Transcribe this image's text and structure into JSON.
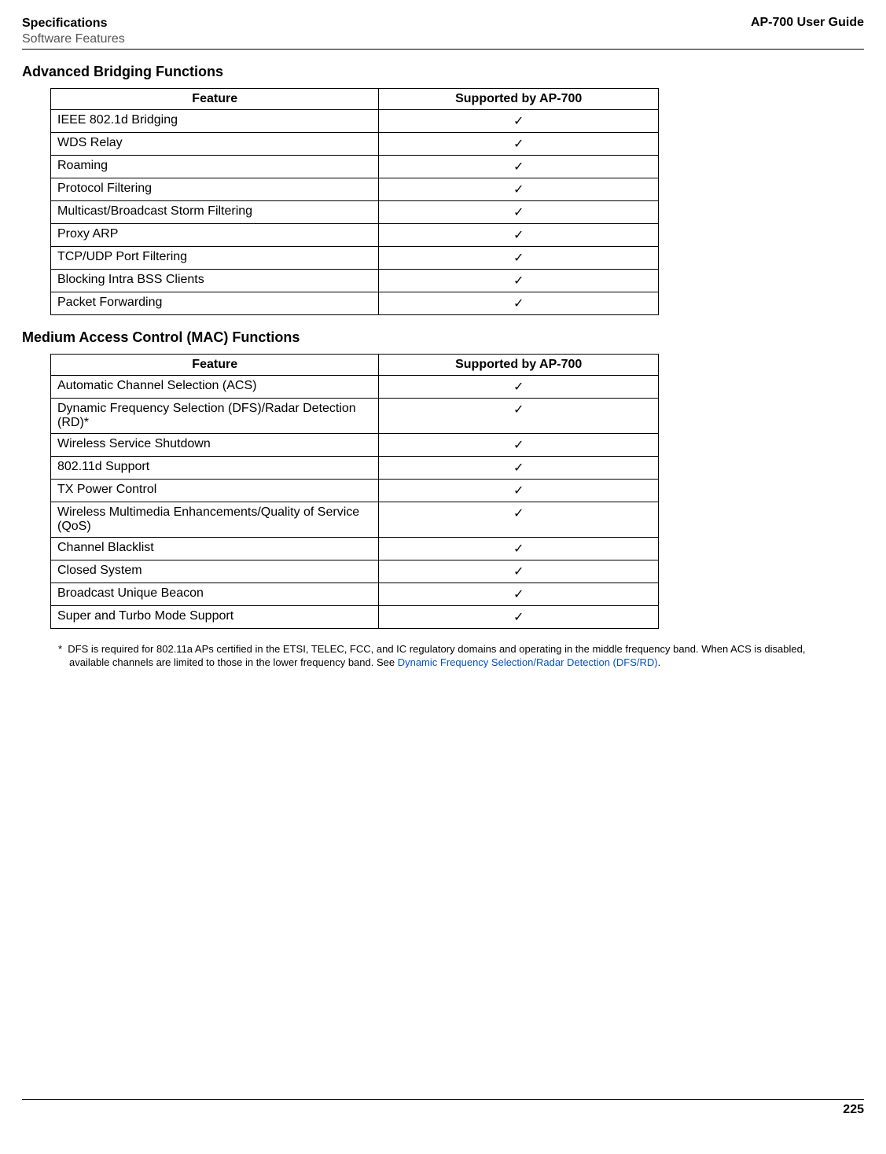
{
  "header": {
    "line1": "Specifications",
    "line2": "Software Features",
    "right": "AP-700 User Guide"
  },
  "sections": [
    {
      "title": "Advanced Bridging Functions",
      "columns": [
        "Feature",
        "Supported by AP-700"
      ],
      "rows": [
        [
          "IEEE 802.1d Bridging",
          "✓"
        ],
        [
          "WDS Relay",
          "✓"
        ],
        [
          "Roaming",
          "✓"
        ],
        [
          "Protocol Filtering",
          "✓"
        ],
        [
          "Multicast/Broadcast Storm Filtering",
          "✓"
        ],
        [
          "Proxy ARP",
          "✓"
        ],
        [
          "TCP/UDP Port Filtering",
          "✓"
        ],
        [
          "Blocking Intra BSS Clients",
          "✓"
        ],
        [
          "Packet Forwarding",
          "✓"
        ]
      ]
    },
    {
      "title": "Medium Access Control (MAC) Functions",
      "columns": [
        "Feature",
        "Supported by AP-700"
      ],
      "rows": [
        [
          "Automatic Channel Selection (ACS)",
          "✓"
        ],
        [
          "Dynamic Frequency Selection (DFS)/Radar Detection (RD)*",
          "✓"
        ],
        [
          "Wireless Service Shutdown",
          "✓"
        ],
        [
          "802.11d Support",
          "✓"
        ],
        [
          "TX Power Control",
          "✓"
        ],
        [
          "Wireless Multimedia Enhancements/Quality of Service (QoS)",
          "✓"
        ],
        [
          "Channel Blacklist",
          "✓"
        ],
        [
          "Closed System",
          "✓"
        ],
        [
          "Broadcast Unique Beacon",
          "✓"
        ],
        [
          "Super and Turbo Mode Support",
          "✓"
        ]
      ]
    }
  ],
  "footnote": {
    "marker": "*",
    "text_before": "DFS is required for 802.11a APs certified in the ETSI, TELEC, FCC, and IC regulatory domains and operating in the middle frequency band. When ACS is disabled, available channels are limited to those in the lower frequency band. See ",
    "link_text": "Dynamic Frequency Selection/Radar Detection (DFS/RD)",
    "text_after": "."
  },
  "page_number": "225"
}
